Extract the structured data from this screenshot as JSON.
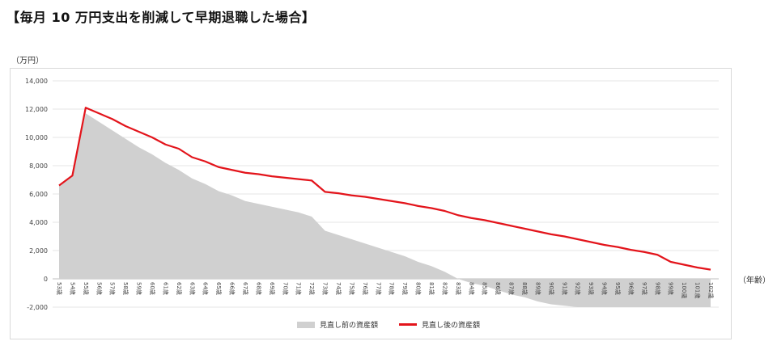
{
  "page": {
    "title": "【毎月 10 万円支出を削減して早期退職した場合】"
  },
  "chart_data": {
    "type": "line+area",
    "y_unit_label": "（万円）",
    "x_unit_label": "（年齢）",
    "ylim": [
      -2000,
      14000
    ],
    "yticks": [
      "14,000",
      "12,000",
      "10,000",
      "8,000",
      "6,000",
      "4,000",
      "2,000",
      "0",
      "-2,000"
    ],
    "ytick_values": [
      14000,
      12000,
      10000,
      8000,
      6000,
      4000,
      2000,
      0,
      -2000
    ],
    "categories": [
      "53歳",
      "54歳",
      "55歳",
      "56歳",
      "57歳",
      "58歳",
      "59歳",
      "60歳",
      "61歳",
      "62歳",
      "63歳",
      "64歳",
      "65歳",
      "66歳",
      "67歳",
      "68歳",
      "69歳",
      "70歳",
      "71歳",
      "72歳",
      "73歳",
      "74歳",
      "75歳",
      "76歳",
      "77歳",
      "78歳",
      "79歳",
      "80歳",
      "81歳",
      "82歳",
      "83歳",
      "84歳",
      "85歳",
      "86歳",
      "87歳",
      "88歳",
      "89歳",
      "90歳",
      "91歳",
      "92歳",
      "93歳",
      "94歳",
      "95歳",
      "96歳",
      "97歳",
      "98歳",
      "99歳",
      "100歳",
      "101歳",
      "102歳"
    ],
    "series": [
      {
        "name": "見直し前の資産額",
        "kind": "area",
        "color": "#d0d0d0",
        "values": [
          6600,
          7300,
          11700,
          11100,
          10500,
          9900,
          9300,
          8800,
          8200,
          7700,
          7100,
          6700,
          6200,
          5900,
          5500,
          5300,
          5100,
          4900,
          4700,
          4400,
          3400,
          3100,
          2800,
          2500,
          2200,
          1900,
          1600,
          1200,
          900,
          500,
          0,
          -300,
          -500,
          -800,
          -1100,
          -1300,
          -1600,
          -1800,
          -1900,
          -2000,
          -2000,
          -2000,
          -2000,
          -2000,
          -2000,
          -2000,
          -2000,
          -2000,
          -2000,
          -2000
        ]
      },
      {
        "name": "見直し後の資産額",
        "kind": "line",
        "color": "#e3141b",
        "values": [
          6600,
          7300,
          12100,
          11700,
          11300,
          10800,
          10400,
          10000,
          9500,
          9200,
          8600,
          8300,
          7900,
          7700,
          7500,
          7400,
          7250,
          7150,
          7050,
          6950,
          6150,
          6050,
          5900,
          5800,
          5650,
          5500,
          5350,
          5150,
          5000,
          4800,
          4500,
          4300,
          4150,
          3950,
          3750,
          3550,
          3350,
          3150,
          3000,
          2800,
          2600,
          2400,
          2250,
          2050,
          1900,
          1700,
          1200,
          1000,
          800,
          650
        ]
      }
    ]
  }
}
